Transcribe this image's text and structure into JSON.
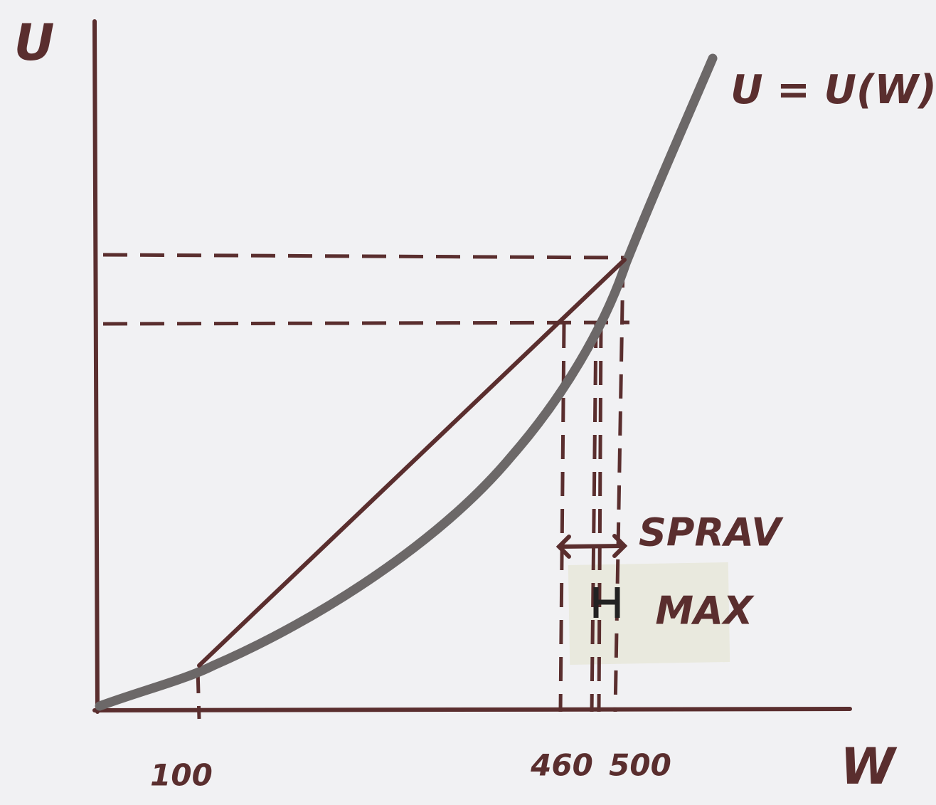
{
  "axes": {
    "y_label": "U",
    "x_label": "W"
  },
  "curve_label": "U = U(W)",
  "x_labels": [
    "100",
    "460",
    "500"
  ],
  "annotations": {
    "spread": "SPRAV",
    "max": "MAX"
  }
}
